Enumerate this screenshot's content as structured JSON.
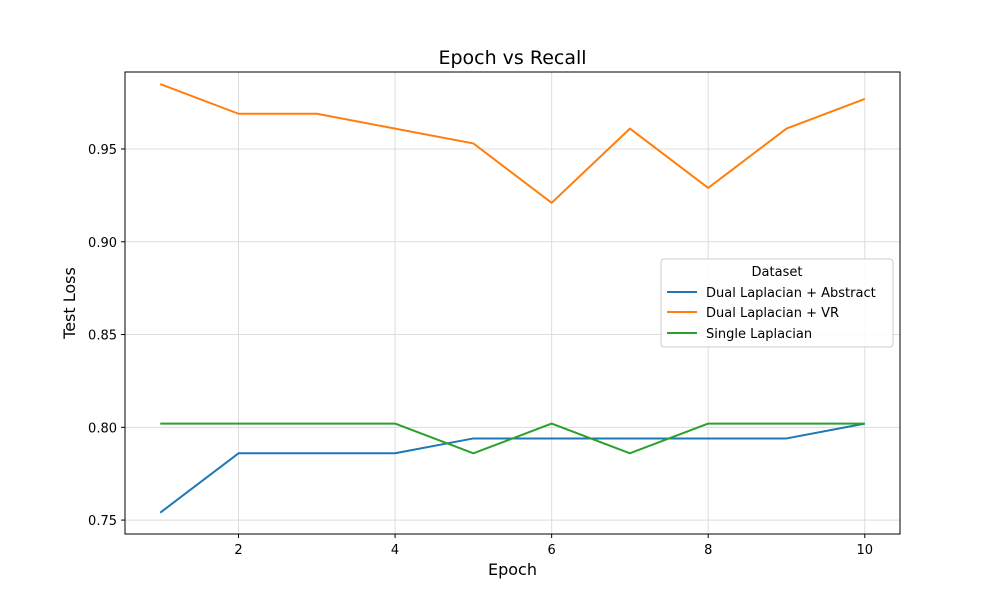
{
  "chart_data": {
    "type": "line",
    "title": "Epoch vs Recall",
    "xlabel": "Epoch",
    "ylabel": "Test Loss",
    "x": [
      1,
      2,
      3,
      4,
      5,
      6,
      7,
      8,
      9,
      10
    ],
    "xlim": [
      0.55,
      10.45
    ],
    "ylim": [
      0.7425,
      0.9915
    ],
    "xticks": [
      2,
      4,
      6,
      8,
      10
    ],
    "xtick_labels": [
      "2",
      "4",
      "6",
      "8",
      "10"
    ],
    "yticks": [
      0.75,
      0.8,
      0.85,
      0.9,
      0.95
    ],
    "ytick_labels": [
      "0.75",
      "0.80",
      "0.85",
      "0.90",
      "0.95"
    ],
    "grid": true,
    "legend": {
      "title": "Dataset",
      "placement": "center-right"
    },
    "series": [
      {
        "name": "Dual Laplacian + Abstract",
        "color": "#1f77b4",
        "values": [
          0.754,
          0.786,
          0.786,
          0.786,
          0.794,
          0.794,
          0.794,
          0.794,
          0.794,
          0.802
        ]
      },
      {
        "name": "Dual Laplacian + VR",
        "color": "#ff7f0e",
        "values": [
          0.985,
          0.969,
          0.969,
          0.961,
          0.953,
          0.921,
          0.961,
          0.929,
          0.961,
          0.977
        ]
      },
      {
        "name": "Single Laplacian",
        "color": "#2ca02c",
        "values": [
          0.802,
          0.802,
          0.802,
          0.802,
          0.786,
          0.802,
          0.786,
          0.802,
          0.802,
          0.802
        ]
      }
    ]
  }
}
